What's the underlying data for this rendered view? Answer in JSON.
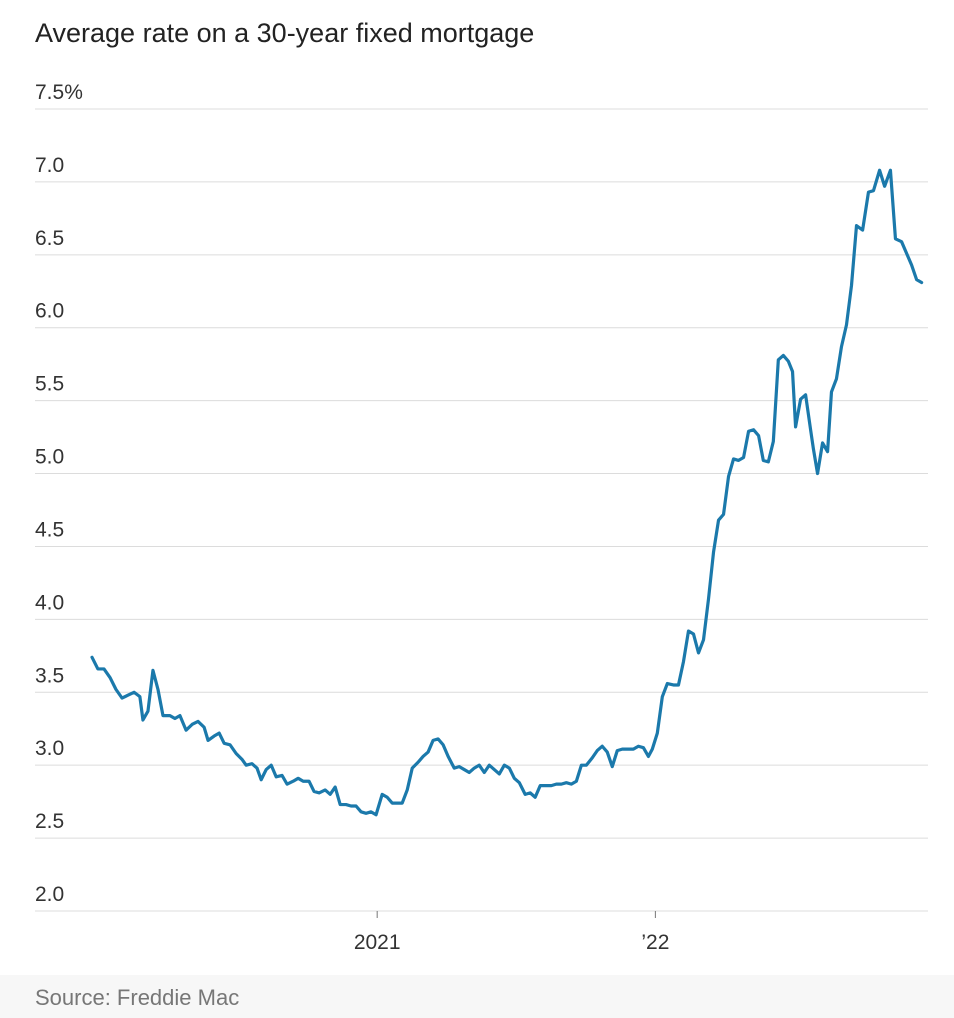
{
  "chart_data": {
    "type": "line",
    "title": "Average rate on a 30-year fixed mortgage",
    "source": "Source: Freddie Mac",
    "xlim": [
      2019.77,
      2022.98
    ],
    "xticks": [
      2021,
      {
        "value": 2022,
        "label": "’22"
      }
    ],
    "ylim": [
      2,
      7.5
    ],
    "yticks": [
      {
        "value": 2,
        "label": "2.0"
      },
      2.5,
      {
        "value": 3,
        "label": "3.0"
      },
      3.5,
      {
        "value": 4,
        "label": "4.0"
      },
      4.5,
      {
        "value": 5,
        "label": "5.0"
      },
      5.5,
      {
        "value": 6,
        "label": "6.0"
      },
      6.5,
      {
        "value": 7,
        "label": "7.0"
      },
      {
        "value": 7.5,
        "label": "7.5%"
      }
    ],
    "grid": true,
    "x": [
      2019.975,
      2019.996,
      2020.018,
      2020.04,
      2020.061,
      2020.083,
      2020.104,
      2020.126,
      2020.147,
      2020.158,
      2020.176,
      2020.194,
      2020.212,
      2020.23,
      2020.255,
      2020.273,
      2020.291,
      2020.313,
      2020.335,
      2020.356,
      2020.378,
      2020.392,
      2020.414,
      2020.432,
      2020.45,
      2020.471,
      2020.493,
      2020.514,
      2020.529,
      2020.55,
      2020.568,
      2020.583,
      2020.601,
      2020.619,
      2020.637,
      2020.658,
      2020.676,
      2020.698,
      2020.716,
      2020.734,
      2020.755,
      2020.773,
      2020.791,
      2020.813,
      2020.831,
      2020.849,
      2020.867,
      2020.888,
      2020.906,
      2020.924,
      2020.942,
      2020.96,
      2020.978,
      2020.996,
      2021.018,
      2021.036,
      2021.054,
      2021.072,
      2021.09,
      2021.108,
      2021.126,
      2021.147,
      2021.165,
      2021.183,
      2021.201,
      2021.219,
      2021.237,
      2021.255,
      2021.277,
      2021.295,
      2021.313,
      2021.331,
      2021.349,
      2021.367,
      2021.385,
      2021.403,
      2021.421,
      2021.439,
      2021.457,
      2021.475,
      2021.493,
      2021.511,
      2021.532,
      2021.55,
      2021.568,
      2021.586,
      2021.604,
      2021.626,
      2021.644,
      2021.662,
      2021.68,
      2021.698,
      2021.716,
      2021.734,
      2021.752,
      2021.773,
      2021.791,
      2021.809,
      2021.827,
      2021.845,
      2021.863,
      2021.881,
      2021.903,
      2021.921,
      2021.939,
      2021.957,
      2021.975,
      2021.989,
      2022.007,
      2022.025,
      2022.043,
      2022.065,
      2022.083,
      2022.101,
      2022.119,
      2022.137,
      2022.155,
      2022.173,
      2022.191,
      2022.209,
      2022.227,
      2022.245,
      2022.263,
      2022.281,
      2022.299,
      2022.317,
      2022.335,
      2022.353,
      2022.371,
      2022.388,
      2022.406,
      2022.424,
      2022.442,
      2022.46,
      2022.478,
      2022.493,
      2022.504,
      2022.522,
      2022.54,
      2022.558,
      2022.568,
      2022.583,
      2022.601,
      2022.619,
      2022.633,
      2022.651,
      2022.669,
      2022.687,
      2022.705,
      2022.723,
      2022.745,
      2022.766,
      2022.784,
      2022.806,
      2022.824,
      2022.845,
      2022.863,
      2022.885,
      2022.903,
      2022.921,
      2022.939,
      2022.957
    ],
    "series": [
      {
        "name": "30-year fixed",
        "color": "#1b79ab",
        "values": [
          3.74,
          3.66,
          3.66,
          3.6,
          3.52,
          3.46,
          3.48,
          3.5,
          3.47,
          3.31,
          3.37,
          3.65,
          3.52,
          3.34,
          3.34,
          3.32,
          3.34,
          3.24,
          3.28,
          3.3,
          3.26,
          3.17,
          3.2,
          3.22,
          3.15,
          3.14,
          3.08,
          3.04,
          3.0,
          3.01,
          2.98,
          2.9,
          2.97,
          3.0,
          2.92,
          2.93,
          2.87,
          2.89,
          2.91,
          2.89,
          2.89,
          2.82,
          2.81,
          2.83,
          2.8,
          2.85,
          2.73,
          2.73,
          2.72,
          2.72,
          2.68,
          2.67,
          2.68,
          2.66,
          2.8,
          2.78,
          2.74,
          2.74,
          2.74,
          2.83,
          2.98,
          3.02,
          3.06,
          3.09,
          3.17,
          3.18,
          3.14,
          3.06,
          2.98,
          2.99,
          2.97,
          2.95,
          2.98,
          3.0,
          2.95,
          3.0,
          2.97,
          2.94,
          3.0,
          2.98,
          2.91,
          2.88,
          2.8,
          2.81,
          2.78,
          2.86,
          2.86,
          2.86,
          2.87,
          2.87,
          2.88,
          2.87,
          2.89,
          3.0,
          3.0,
          3.05,
          3.1,
          3.13,
          3.09,
          2.99,
          3.1,
          3.11,
          3.11,
          3.11,
          3.13,
          3.12,
          3.06,
          3.11,
          3.22,
          3.47,
          3.56,
          3.55,
          3.55,
          3.71,
          3.92,
          3.9,
          3.77,
          3.86,
          4.14,
          4.46,
          4.68,
          4.72,
          4.98,
          5.1,
          5.09,
          5.11,
          5.29,
          5.3,
          5.26,
          5.09,
          5.08,
          5.22,
          5.78,
          5.81,
          5.77,
          5.7,
          5.32,
          5.51,
          5.54,
          5.3,
          5.17,
          5.0,
          5.21,
          5.15,
          5.56,
          5.65,
          5.87,
          6.02,
          6.29,
          6.7,
          6.67,
          6.93,
          6.94,
          7.08,
          6.97,
          7.08,
          6.61,
          6.59,
          6.51,
          6.43,
          6.33,
          6.31
        ]
      }
    ]
  }
}
